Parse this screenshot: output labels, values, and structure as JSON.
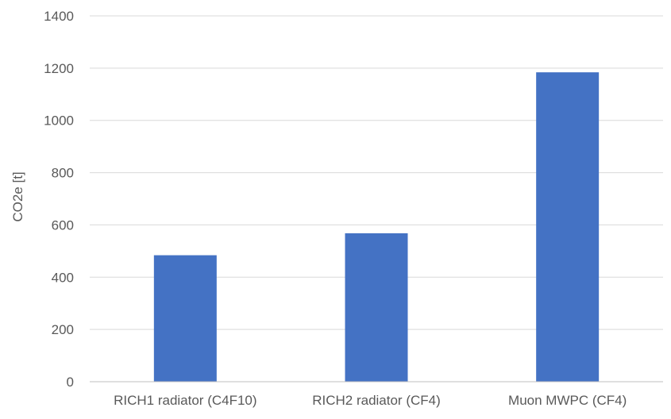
{
  "chart_data": {
    "type": "bar",
    "title": "",
    "xlabel": "",
    "ylabel": "CO2e  [t]",
    "categories": [
      "RICH1 radiator (C4F10)",
      "RICH2 radiator (CF4)",
      "Muon MWPC (CF4)"
    ],
    "values": [
      484,
      568,
      1184
    ],
    "ylim": [
      0,
      1400
    ],
    "yticks": [
      0,
      200,
      400,
      600,
      800,
      1000,
      1200,
      1400
    ],
    "grid": true,
    "legend": "none",
    "colors": {
      "bar": "#4472C4",
      "grid": "#D9D9D9",
      "axis": "#BFBFBF",
      "text": "#595959"
    }
  }
}
